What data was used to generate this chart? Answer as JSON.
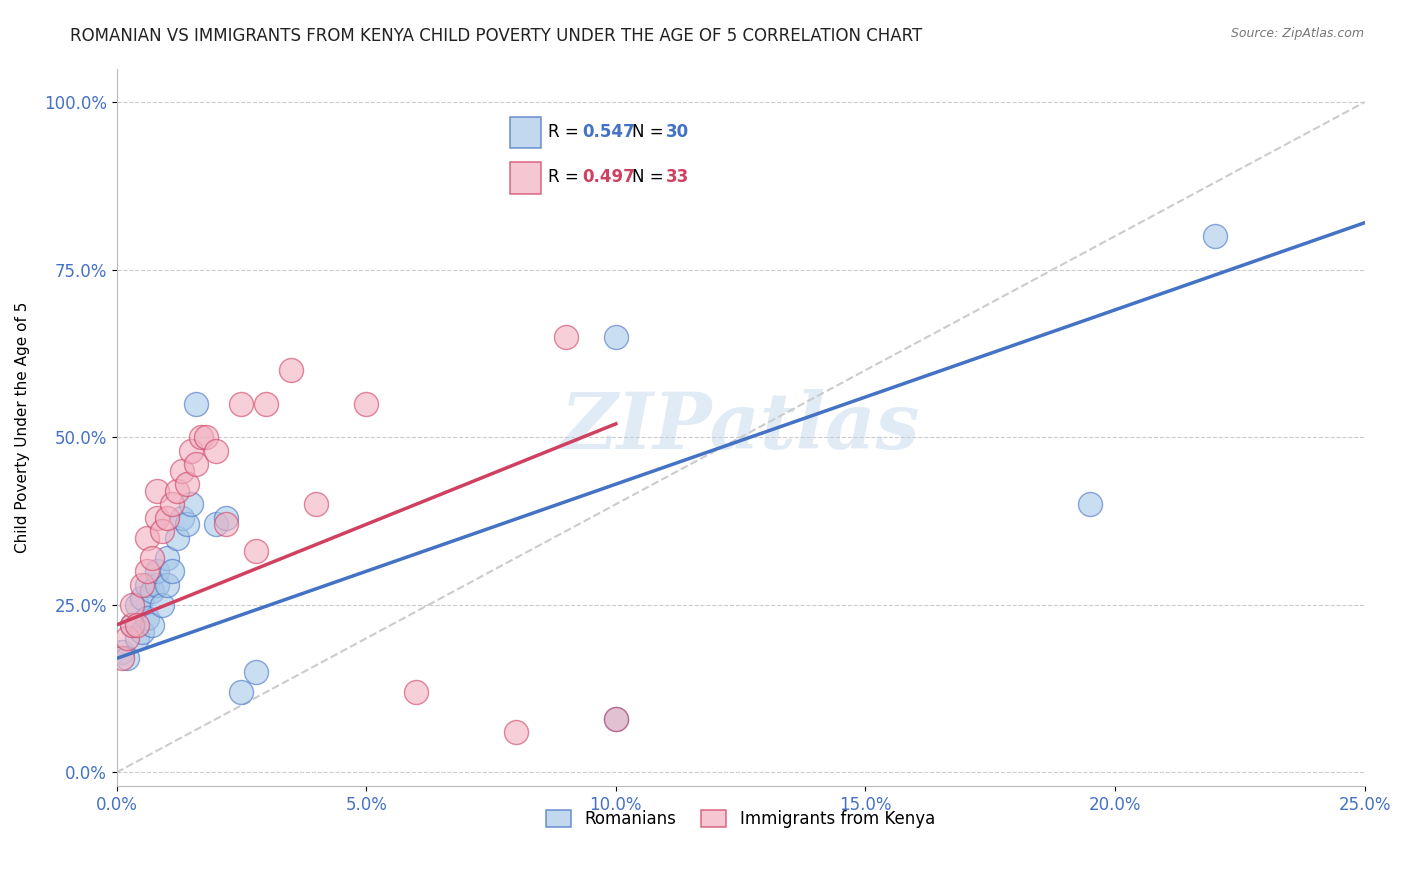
{
  "title": "ROMANIAN VS IMMIGRANTS FROM KENYA CHILD POVERTY UNDER THE AGE OF 5 CORRELATION CHART",
  "source": "Source: ZipAtlas.com",
  "ylabel": "Child Poverty Under the Age of 5",
  "watermark": "ZIPatlas",
  "legend_blue_r": "0.547",
  "legend_blue_n": "30",
  "legend_pink_r": "0.497",
  "legend_pink_n": "33",
  "blue_color": "#a8c8e8",
  "pink_color": "#f0b0c0",
  "blue_line_color": "#4472c4",
  "pink_line_color": "#d04060",
  "diag_color": "#cccccc",
  "xlim": [
    0.0,
    0.25
  ],
  "ylim": [
    -0.02,
    1.05
  ],
  "xticks": [
    0.0,
    0.05,
    0.1,
    0.15,
    0.2,
    0.25
  ],
  "yticks": [
    0.0,
    0.25,
    0.5,
    0.75,
    1.0
  ],
  "blue_scatter_x": [
    0.001,
    0.002,
    0.003,
    0.004,
    0.004,
    0.005,
    0.005,
    0.006,
    0.006,
    0.007,
    0.007,
    0.008,
    0.008,
    0.009,
    0.01,
    0.01,
    0.011,
    0.012,
    0.013,
    0.014,
    0.015,
    0.016,
    0.02,
    0.022,
    0.025,
    0.028,
    0.1,
    0.195,
    0.1,
    0.22
  ],
  "blue_scatter_y": [
    0.18,
    0.17,
    0.22,
    0.2,
    0.25,
    0.21,
    0.26,
    0.23,
    0.28,
    0.22,
    0.27,
    0.28,
    0.3,
    0.25,
    0.28,
    0.32,
    0.3,
    0.35,
    0.38,
    0.37,
    0.4,
    0.55,
    0.37,
    0.38,
    0.12,
    0.15,
    0.08,
    0.4,
    0.65,
    0.8
  ],
  "pink_scatter_x": [
    0.001,
    0.002,
    0.003,
    0.003,
    0.004,
    0.005,
    0.006,
    0.006,
    0.007,
    0.008,
    0.008,
    0.009,
    0.01,
    0.011,
    0.012,
    0.013,
    0.014,
    0.015,
    0.016,
    0.017,
    0.018,
    0.02,
    0.022,
    0.025,
    0.028,
    0.03,
    0.035,
    0.04,
    0.05,
    0.06,
    0.08,
    0.09,
    0.1
  ],
  "pink_scatter_y": [
    0.17,
    0.2,
    0.22,
    0.25,
    0.22,
    0.28,
    0.3,
    0.35,
    0.32,
    0.38,
    0.42,
    0.36,
    0.38,
    0.4,
    0.42,
    0.45,
    0.43,
    0.48,
    0.46,
    0.5,
    0.5,
    0.48,
    0.37,
    0.55,
    0.33,
    0.55,
    0.6,
    0.4,
    0.55,
    0.12,
    0.06,
    0.65,
    0.08
  ]
}
